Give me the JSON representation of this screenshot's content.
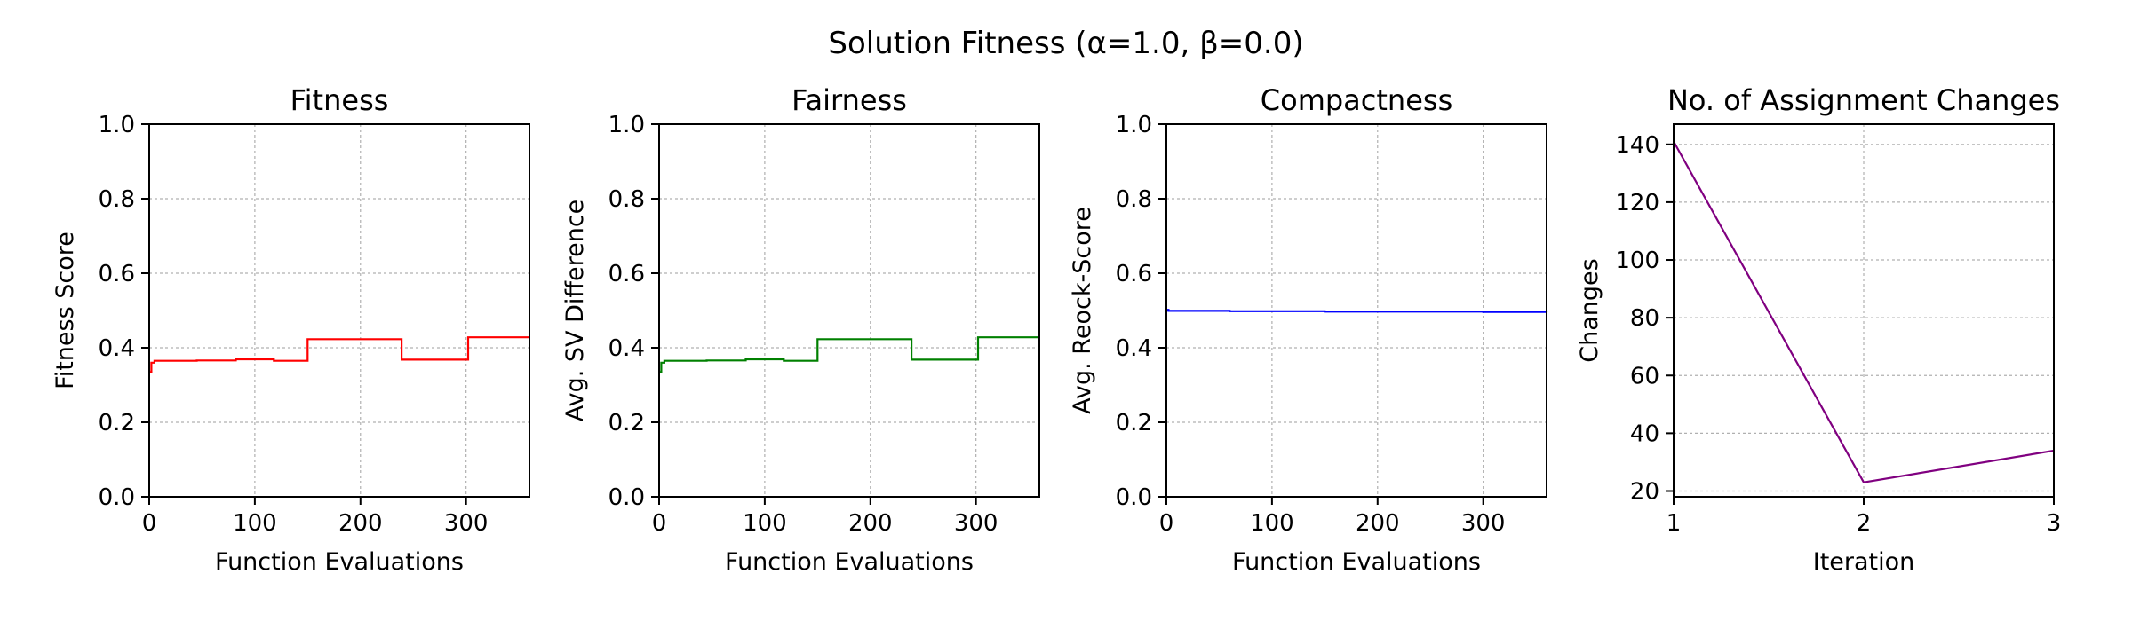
{
  "figure": {
    "suptitle": "Solution Fitness (α=1.0, β=0.0)"
  },
  "chart_data": [
    {
      "type": "line",
      "title": "Fitness",
      "xlabel": "Function Evaluations",
      "ylabel": "Fitness Score",
      "xlim": [
        0,
        360
      ],
      "ylim": [
        0.0,
        1.0
      ],
      "xticks": [
        0,
        100,
        200,
        300
      ],
      "yticks": [
        0.0,
        0.2,
        0.4,
        0.6,
        0.8,
        1.0
      ],
      "tick_labels_x": [
        "0",
        "100",
        "200",
        "300"
      ],
      "tick_labels_y": [
        "0.0",
        "0.2",
        "0.4",
        "0.6",
        "0.8",
        "1.0"
      ],
      "grid": true,
      "color": "#ff0000",
      "step": true,
      "x": [
        0,
        2,
        5,
        45,
        82,
        118,
        150,
        239,
        302,
        360
      ],
      "y": [
        0.335,
        0.36,
        0.365,
        0.366,
        0.369,
        0.365,
        0.423,
        0.368,
        0.428,
        0.428
      ]
    },
    {
      "type": "line",
      "title": "Fairness",
      "xlabel": "Function Evaluations",
      "ylabel": "Avg. SV Difference",
      "xlim": [
        0,
        360
      ],
      "ylim": [
        0.0,
        1.0
      ],
      "xticks": [
        0,
        100,
        200,
        300
      ],
      "yticks": [
        0.0,
        0.2,
        0.4,
        0.6,
        0.8,
        1.0
      ],
      "tick_labels_x": [
        "0",
        "100",
        "200",
        "300"
      ],
      "tick_labels_y": [
        "0.0",
        "0.2",
        "0.4",
        "0.6",
        "0.8",
        "1.0"
      ],
      "grid": true,
      "color": "#008000",
      "step": true,
      "x": [
        0,
        2,
        5,
        45,
        82,
        118,
        150,
        239,
        302,
        360
      ],
      "y": [
        0.335,
        0.36,
        0.365,
        0.366,
        0.369,
        0.365,
        0.423,
        0.368,
        0.428,
        0.428
      ]
    },
    {
      "type": "line",
      "title": "Compactness",
      "xlabel": "Function Evaluations",
      "ylabel": "Avg. Reock-Score",
      "xlim": [
        0,
        360
      ],
      "ylim": [
        0.0,
        1.0
      ],
      "xticks": [
        0,
        100,
        200,
        300
      ],
      "yticks": [
        0.0,
        0.2,
        0.4,
        0.6,
        0.8,
        1.0
      ],
      "tick_labels_x": [
        "0",
        "100",
        "200",
        "300"
      ],
      "tick_labels_y": [
        "0.0",
        "0.2",
        "0.4",
        "0.6",
        "0.8",
        "1.0"
      ],
      "grid": true,
      "color": "#0000ff",
      "step": true,
      "x": [
        0,
        2,
        60,
        150,
        240,
        300,
        360
      ],
      "y": [
        0.502,
        0.499,
        0.498,
        0.497,
        0.497,
        0.496,
        0.495
      ]
    },
    {
      "type": "line",
      "title": "No. of Assignment Changes",
      "xlabel": "Iteration",
      "ylabel": "Changes",
      "xlim": [
        1,
        3
      ],
      "ylim": [
        18,
        147
      ],
      "xticks": [
        1,
        2,
        3
      ],
      "yticks": [
        20,
        40,
        60,
        80,
        100,
        120,
        140
      ],
      "tick_labels_x": [
        "1",
        "2",
        "3"
      ],
      "tick_labels_y": [
        "20",
        "40",
        "60",
        "80",
        "100",
        "120",
        "140"
      ],
      "grid": true,
      "color": "#800080",
      "step": false,
      "x": [
        1,
        2,
        3
      ],
      "y": [
        141,
        23,
        34
      ]
    }
  ]
}
